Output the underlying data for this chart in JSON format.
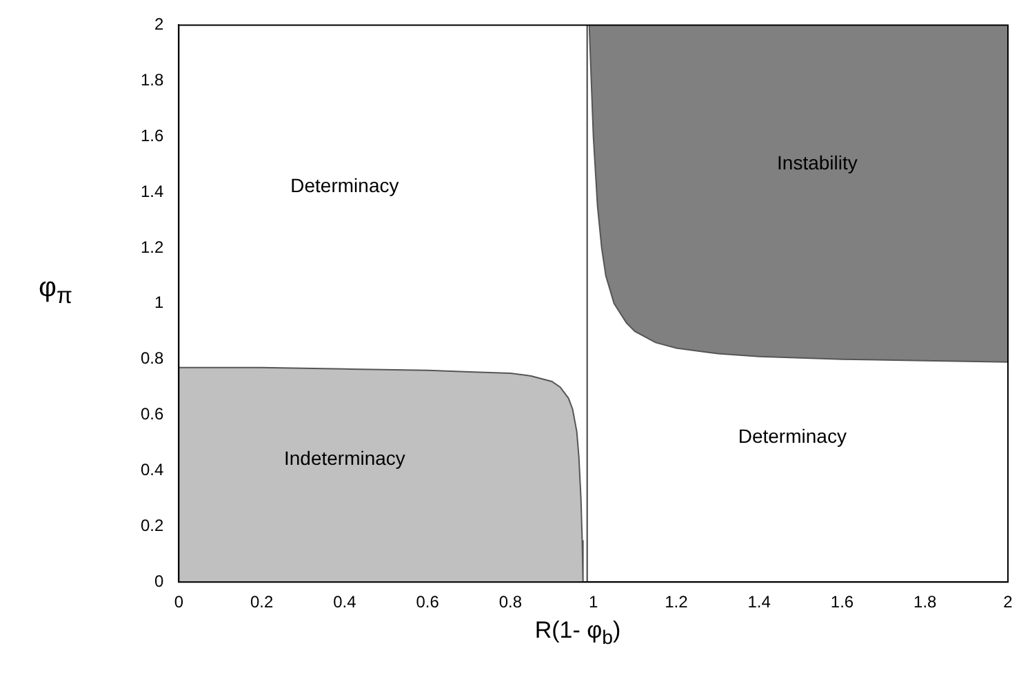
{
  "chart_data": {
    "type": "area",
    "xlabel": "R(1- φ$_{b}$)",
    "ylabel": "φ$_{π}$",
    "xlim": [
      0,
      2
    ],
    "ylim": [
      0,
      2
    ],
    "xticks": [
      0,
      0.2,
      0.4,
      0.6,
      0.8,
      1,
      1.2,
      1.4,
      1.6,
      1.8,
      2
    ],
    "yticks": [
      0,
      0.2,
      0.4,
      0.6,
      0.8,
      1,
      1.2,
      1.4,
      1.6,
      1.8,
      2
    ],
    "grid": false,
    "legend": false,
    "series": [
      {
        "color": "#c0c0c0",
        "x": [
          0,
          0.2,
          0.4,
          0.6,
          0.7,
          0.8,
          0.85,
          0.9,
          0.92,
          0.94,
          0.95,
          0.96,
          0.965,
          0.97,
          0.973,
          0.975,
          0
        ],
        "values": [
          0.77,
          0.77,
          0.765,
          0.76,
          0.755,
          0.75,
          0.74,
          0.72,
          0.7,
          0.66,
          0.62,
          0.54,
          0.45,
          0.3,
          0.15,
          0,
          0
        ]
      },
      {
        "color": "#808080",
        "x": [
          0.99,
          0.995,
          1,
          1.01,
          1.02,
          1.03,
          1.05,
          1.08,
          1.1,
          1.15,
          1.2,
          1.3,
          1.4,
          1.6,
          1.8,
          2,
          2
        ],
        "values": [
          2,
          1.8,
          1.6,
          1.35,
          1.2,
          1.1,
          1,
          0.93,
          0.9,
          0.86,
          0.84,
          0.82,
          0.81,
          0.8,
          0.795,
          0.79,
          2
        ]
      }
    ],
    "ref_lines": [
      {
        "axis": "x",
        "value": 0.985,
        "color": "#404040"
      }
    ],
    "annotations": [
      "Determinacy",
      "Instability",
      "Indeterminacy",
      "Determinacy"
    ]
  }
}
